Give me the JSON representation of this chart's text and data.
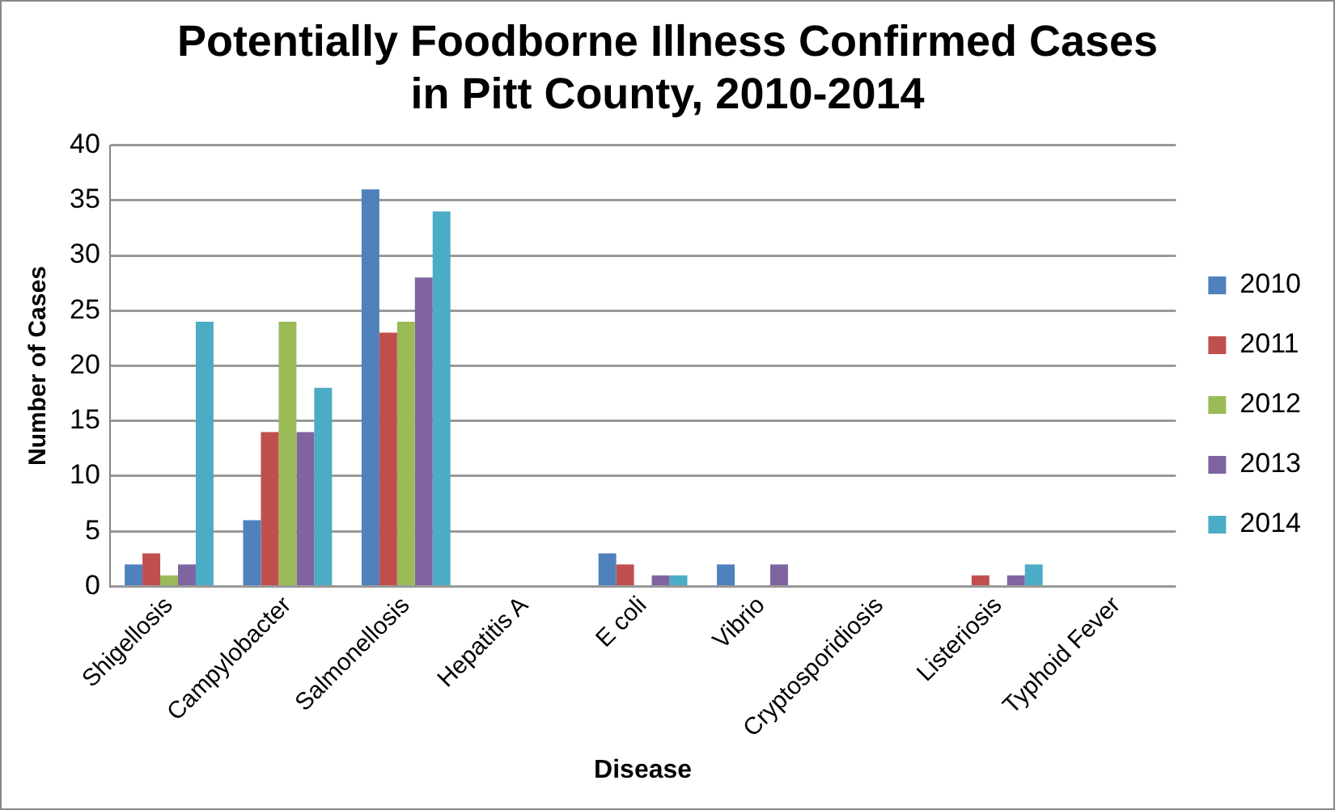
{
  "chart_data": {
    "type": "bar",
    "title": "Potentially Foodborne Illness Confirmed Cases in Pitt County, 2010-2014",
    "xlabel": "Disease",
    "ylabel": "Number of Cases",
    "categories": [
      "Shigellosis",
      "Campylobacter",
      "Salmonellosis",
      "Hepatitis A",
      "E coli",
      "Vibrio",
      "Cryptosporidiosis",
      "Listeriosis",
      "Typhoid Fever"
    ],
    "series": [
      {
        "name": "2010",
        "color": "#4f81bd",
        "values": [
          2,
          6,
          36,
          0,
          3,
          2,
          0,
          0,
          0
        ]
      },
      {
        "name": "2011",
        "color": "#c0504d",
        "values": [
          3,
          14,
          23,
          0,
          2,
          0,
          0,
          1,
          0
        ]
      },
      {
        "name": "2012",
        "color": "#9bbb59",
        "values": [
          1,
          24,
          24,
          0,
          0,
          0,
          0,
          0,
          0
        ]
      },
      {
        "name": "2013",
        "color": "#8064a2",
        "values": [
          2,
          14,
          28,
          0,
          1,
          2,
          0,
          1,
          0
        ]
      },
      {
        "name": "2014",
        "color": "#4bacc6",
        "values": [
          24,
          18,
          34,
          0,
          1,
          0,
          0,
          2,
          0
        ]
      }
    ],
    "ylim": [
      0,
      40
    ],
    "yticks": [
      0,
      5,
      10,
      15,
      20,
      25,
      30,
      35,
      40
    ],
    "grid": "y",
    "legend": "right"
  }
}
